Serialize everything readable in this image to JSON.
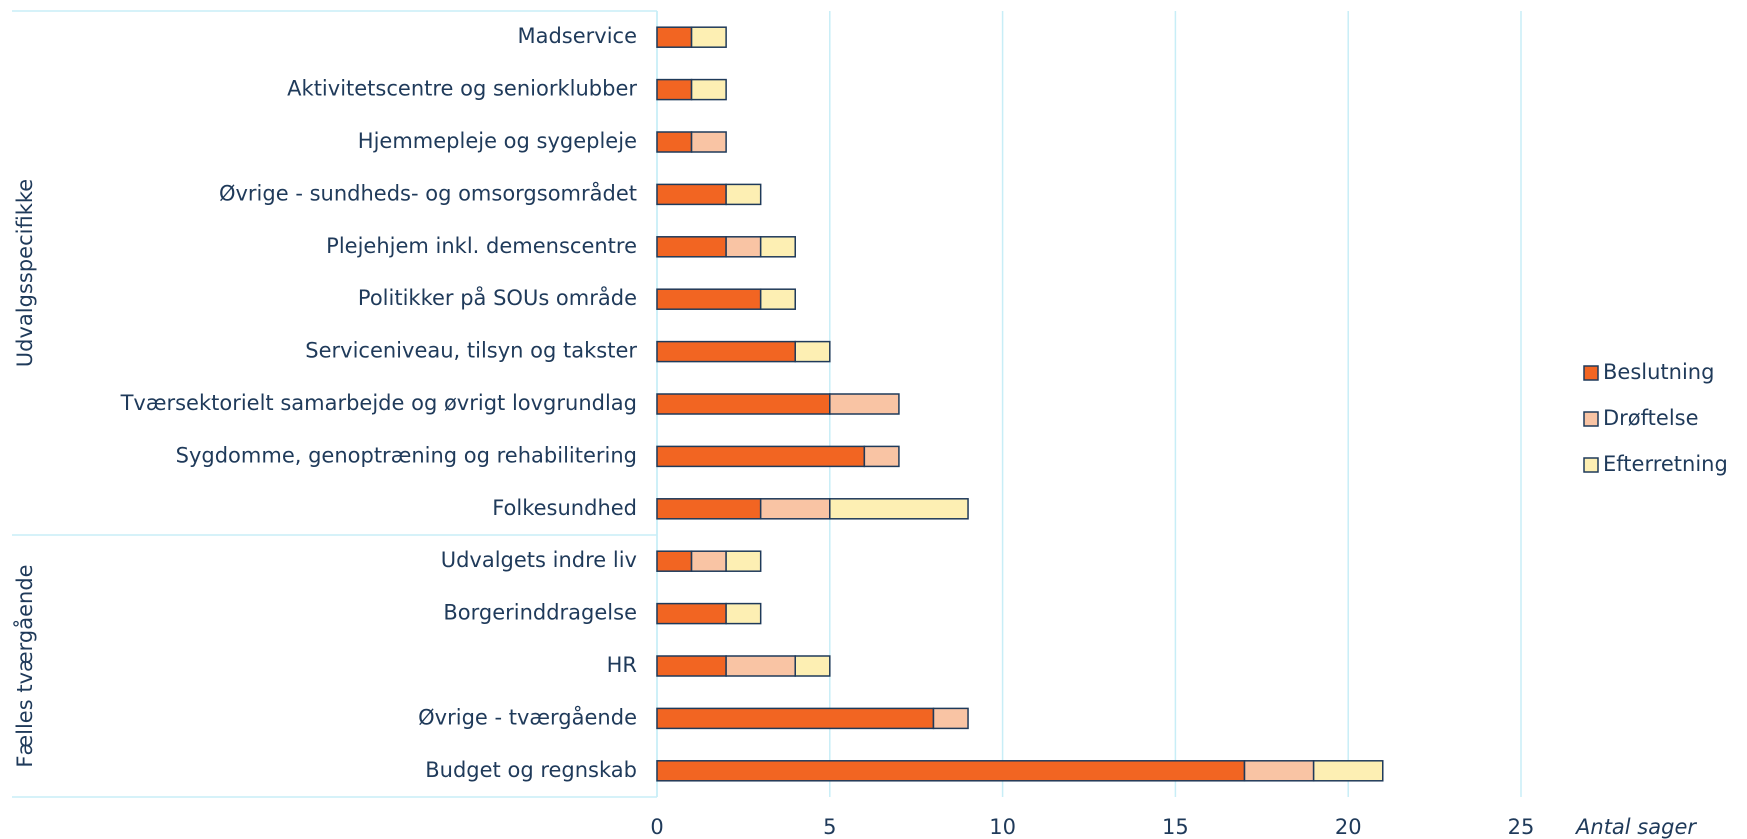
{
  "chart_data": {
    "type": "stacked_barh",
    "categories": [
      "Madservice",
      "Aktivitetscentre og seniorklubber",
      "Hjemmepleje og sygepleje",
      "Øvrige - sundheds- og omsorgsområdet",
      "Plejehjem inkl. demenscentre",
      "Politikker på SOUs område",
      "Serviceniveau, tilsyn og takster",
      "Tværsektorielt samarbejde og øvrigt lovgrundlag",
      "Sygdomme, genoptræning og rehabilitering",
      "Folkesundhed",
      "Udvalgets indre liv",
      "Borgerinddragelse",
      "HR",
      "Øvrige - tværgående",
      "Budget og regnskab"
    ],
    "groups": [
      {
        "name": "Udvalgsspecifikke",
        "count": 10
      },
      {
        "name": "Fælles tværgående",
        "count": 5
      }
    ],
    "series": [
      {
        "name": "Beslutning",
        "color": "#f26522",
        "values": [
          1,
          1,
          1,
          2,
          2,
          3,
          4,
          5,
          6,
          3,
          1,
          2,
          2,
          8,
          17
        ]
      },
      {
        "name": "Drøftelse",
        "color": "#f9c4a4",
        "values": [
          0,
          0,
          1,
          0,
          1,
          0,
          0,
          2,
          1,
          2,
          1,
          0,
          2,
          1,
          2
        ]
      },
      {
        "name": "Efterretning",
        "color": "#fdefb3",
        "values": [
          1,
          1,
          0,
          1,
          1,
          1,
          1,
          0,
          0,
          4,
          1,
          1,
          1,
          0,
          2
        ]
      }
    ],
    "x_label": "Antal sager",
    "xlim": [
      0,
      25
    ],
    "xticks": [
      0,
      5,
      10,
      15,
      20,
      25
    ],
    "grid": true,
    "legend": "right"
  }
}
